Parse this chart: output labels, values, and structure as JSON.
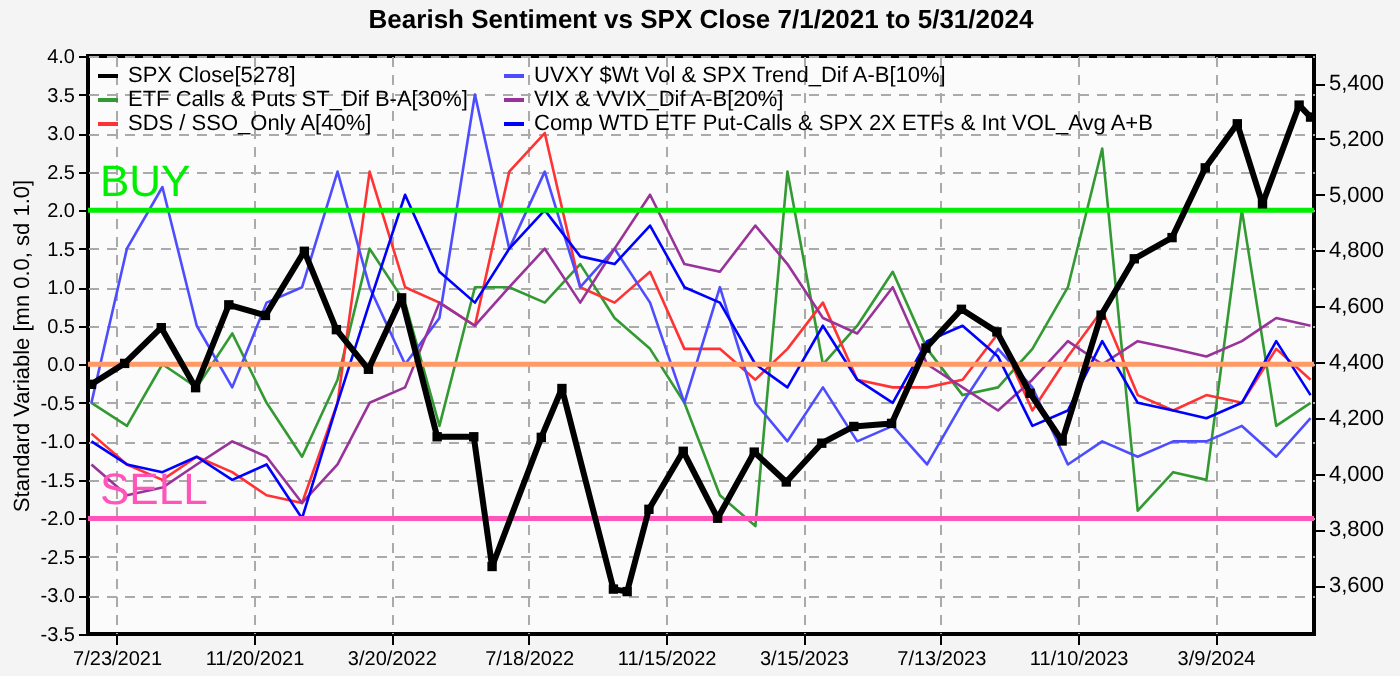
{
  "chart_data": {
    "type": "line",
    "title": "Bearish Sentiment vs SPX Close 7/1/2021 to 5/31/2024",
    "ylabel": "Standard Variable [mn 0.0, sd 1.0]",
    "x": [
      "2021-07-01",
      "2021-08-01",
      "2021-09-01",
      "2021-10-01",
      "2021-11-01",
      "2021-12-01",
      "2022-01-01",
      "2022-02-01",
      "2022-03-01",
      "2022-04-01",
      "2022-05-01",
      "2022-06-01",
      "2022-07-01",
      "2022-08-01",
      "2022-09-01",
      "2022-10-01",
      "2022-11-01",
      "2022-12-01",
      "2023-01-01",
      "2023-02-01",
      "2023-03-01",
      "2023-04-01",
      "2023-05-01",
      "2023-06-01",
      "2023-07-01",
      "2023-08-01",
      "2023-09-01",
      "2023-10-01",
      "2023-11-01",
      "2023-12-01",
      "2024-01-01",
      "2024-02-01",
      "2024-03-01",
      "2024-04-01",
      "2024-05-01",
      "2024-05-31"
    ],
    "series": [
      {
        "name": "SPX Close[5278]",
        "color": "#000000",
        "axis": "y2",
        "marker": "square",
        "x": [
          "2021-07-01",
          "2021-07-30",
          "2021-08-31",
          "2021-09-30",
          "2021-10-29",
          "2021-11-30",
          "2022-01-03",
          "2022-01-31",
          "2022-02-28",
          "2022-03-29",
          "2022-04-29",
          "2022-05-31",
          "2022-06-16",
          "2022-07-29",
          "2022-08-16",
          "2022-09-30",
          "2022-10-12",
          "2022-10-31",
          "2022-11-30",
          "2022-12-30",
          "2023-01-31",
          "2023-02-28",
          "2023-03-31",
          "2023-04-28",
          "2023-05-31",
          "2023-06-30",
          "2023-07-31",
          "2023-08-31",
          "2023-09-29",
          "2023-10-27",
          "2023-11-30",
          "2023-12-29",
          "2024-01-31",
          "2024-02-29",
          "2024-03-28",
          "2024-04-19",
          "2024-05-21",
          "2024-05-31"
        ],
        "values": [
          4320,
          4395,
          4523,
          4308,
          4605,
          4567,
          4797,
          4516,
          4374,
          4630,
          4132,
          4132,
          3667,
          4130,
          4305,
          3586,
          3577,
          3872,
          4080,
          3840,
          4077,
          3970,
          4109,
          4169,
          4180,
          4450,
          4589,
          4508,
          4288,
          4117,
          4568,
          4770,
          4846,
          5096,
          5254,
          4967,
          5321,
          5278
        ]
      },
      {
        "name": "ETF Calls & Puts ST_Dif B-A[30%]",
        "color": "#339933",
        "values": [
          -0.5,
          -0.8,
          0.0,
          -0.3,
          0.4,
          -0.5,
          -1.2,
          -0.2,
          1.5,
          0.8,
          -0.8,
          1.0,
          1.0,
          0.8,
          1.3,
          0.6,
          0.2,
          -0.5,
          -1.7,
          -2.1,
          2.5,
          0.0,
          0.5,
          1.2,
          0.2,
          -0.4,
          -0.3,
          0.2,
          1.0,
          2.8,
          -1.9,
          -1.4,
          -1.5,
          2.0,
          -0.8,
          -0.5
        ]
      },
      {
        "name": "SDS / SSO_Only A[40%]",
        "color": "#ff3333",
        "values": [
          -0.9,
          -1.3,
          -1.5,
          -1.2,
          -1.4,
          -1.7,
          -1.8,
          -0.5,
          2.5,
          1.0,
          0.8,
          0.5,
          2.5,
          3.0,
          1.0,
          0.8,
          1.2,
          0.2,
          0.2,
          -0.2,
          0.2,
          0.8,
          -0.2,
          -0.3,
          -0.3,
          -0.2,
          0.4,
          -0.6,
          0.1,
          0.7,
          -0.4,
          -0.6,
          -0.4,
          -0.5,
          0.2,
          -0.2
        ]
      },
      {
        "name": "UVXY $Wt Vol & SPX Trend_Dif A-B[10%]",
        "color": "#4d4dff",
        "values": [
          -0.5,
          1.5,
          2.3,
          0.5,
          -0.3,
          0.8,
          1.0,
          2.5,
          1.0,
          0.0,
          0.6,
          3.5,
          1.5,
          2.5,
          1.0,
          1.5,
          0.8,
          -0.5,
          1.0,
          -0.5,
          -1.0,
          -0.3,
          -1.0,
          -0.8,
          -1.3,
          -0.5,
          0.2,
          -0.3,
          -1.3,
          -1.0,
          -1.2,
          -1.0,
          -1.0,
          -0.8,
          -1.2,
          -0.7
        ]
      },
      {
        "name": "VIX & VVIX_Dif A-B[20%]",
        "color": "#993399",
        "values": [
          -1.3,
          -1.7,
          -1.6,
          -1.3,
          -1.0,
          -1.2,
          -1.8,
          -1.3,
          -0.5,
          -0.3,
          0.8,
          0.5,
          1.0,
          1.5,
          0.8,
          1.5,
          2.2,
          1.3,
          1.2,
          1.8,
          1.3,
          0.6,
          0.4,
          1.0,
          0.0,
          -0.3,
          -0.6,
          -0.2,
          0.3,
          0.0,
          0.3,
          0.2,
          0.1,
          0.3,
          0.6,
          0.5
        ]
      },
      {
        "name": "Comp WTD ETF Put-Calls & SPX 2X ETFs & Int VOL_Avg A+B",
        "color": "#0000ff",
        "values": [
          -1.0,
          -1.3,
          -1.4,
          -1.2,
          -1.5,
          -1.3,
          -2.0,
          -0.5,
          0.8,
          2.2,
          1.2,
          0.8,
          1.5,
          2.0,
          1.4,
          1.3,
          1.8,
          1.0,
          0.8,
          0.0,
          -0.3,
          0.5,
          -0.2,
          -0.5,
          0.3,
          0.5,
          0.1,
          -0.8,
          -0.6,
          0.3,
          -0.5,
          -0.6,
          -0.7,
          -0.5,
          0.3,
          -0.4
        ]
      }
    ],
    "xlim": [
      "2021-06-28",
      "2024-06-03"
    ],
    "xticks": [
      {
        "value": "2021-07-23",
        "label": "7/23/2021"
      },
      {
        "value": "2021-11-20",
        "label": "11/20/2021"
      },
      {
        "value": "2022-03-20",
        "label": "3/20/2022"
      },
      {
        "value": "2022-07-18",
        "label": "7/18/2022"
      },
      {
        "value": "2022-11-15",
        "label": "11/15/2022"
      },
      {
        "value": "2023-03-15",
        "label": "3/15/2023"
      },
      {
        "value": "2023-07-13",
        "label": "7/13/2023"
      },
      {
        "value": "2023-11-10",
        "label": "11/10/2023"
      },
      {
        "value": "2024-03-09",
        "label": "3/9/2024"
      }
    ],
    "ylim": [
      -3.5,
      4.0
    ],
    "yticks": [
      {
        "value": -3.5,
        "label": "-3.5"
      },
      {
        "value": -3,
        "label": "-3.0"
      },
      {
        "value": -2.5,
        "label": "-2.5"
      },
      {
        "value": -2,
        "label": "-2.0"
      },
      {
        "value": -1.5,
        "label": "-1.5"
      },
      {
        "value": -1,
        "label": "-1.0"
      },
      {
        "value": -0.5,
        "label": "-0.5"
      },
      {
        "value": 0,
        "label": "0.0"
      },
      {
        "value": 0.5,
        "label": "0.5"
      },
      {
        "value": 1,
        "label": "1.0"
      },
      {
        "value": 1.5,
        "label": "1.5"
      },
      {
        "value": 2,
        "label": "2.0"
      },
      {
        "value": 2.5,
        "label": "2.5"
      },
      {
        "value": 3,
        "label": "3.0"
      },
      {
        "value": 3.5,
        "label": "3.5"
      },
      {
        "value": 4,
        "label": "4.0"
      }
    ],
    "y2lim": [
      3425,
      5497
    ],
    "y2ticks": [
      {
        "value": 3600,
        "label": "3,600"
      },
      {
        "value": 3800,
        "label": "3,800"
      },
      {
        "value": 4000,
        "label": "4,000"
      },
      {
        "value": 4200,
        "label": "4,200"
      },
      {
        "value": 4400,
        "label": "4,400"
      },
      {
        "value": 4600,
        "label": "4,600"
      },
      {
        "value": 4800,
        "label": "4,800"
      },
      {
        "value": 5000,
        "label": "5,000"
      },
      {
        "value": 5200,
        "label": "5,200"
      },
      {
        "value": 5400,
        "label": "5,400"
      }
    ],
    "ref_lines": [
      {
        "axis": "y",
        "value": 2.0,
        "label": "BUY",
        "color": "#00ee00"
      },
      {
        "axis": "y",
        "value": -2.0,
        "label": "SELL",
        "color": "#ff55bb"
      },
      {
        "axis": "y",
        "value": 0.0,
        "color": "#ff9966"
      }
    ],
    "grid": true,
    "legend": "top left",
    "marker": "none"
  }
}
